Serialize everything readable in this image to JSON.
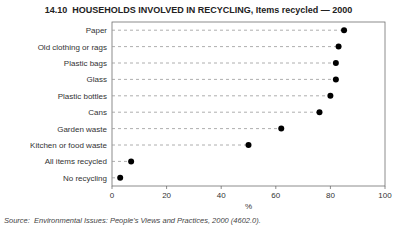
{
  "chart_data": {
    "type": "dot",
    "orientation": "horizontal",
    "title": "14.10  HOUSEHOLDS INVOLVED IN RECYCLING, Items recycled — 2000",
    "categories": [
      "Paper",
      "Old clothing or rags",
      "Plastic bags",
      "Glass",
      "Plastic bottles",
      "Cans",
      "Garden waste",
      "Kitchen or food waste",
      "All items recycled",
      "No recycling"
    ],
    "values": [
      85,
      83,
      82,
      82,
      80,
      76,
      62,
      50,
      7,
      3
    ],
    "xlabel": "%",
    "xlim": [
      0,
      100
    ],
    "xticks": [
      0,
      20,
      40,
      60,
      80,
      100
    ],
    "color": "#000000",
    "line_style": "dashed",
    "marker": "circle",
    "grid": false,
    "source": "Source:  Environmental Issues: People's Views and Practices, 2000 (4602.0)."
  }
}
